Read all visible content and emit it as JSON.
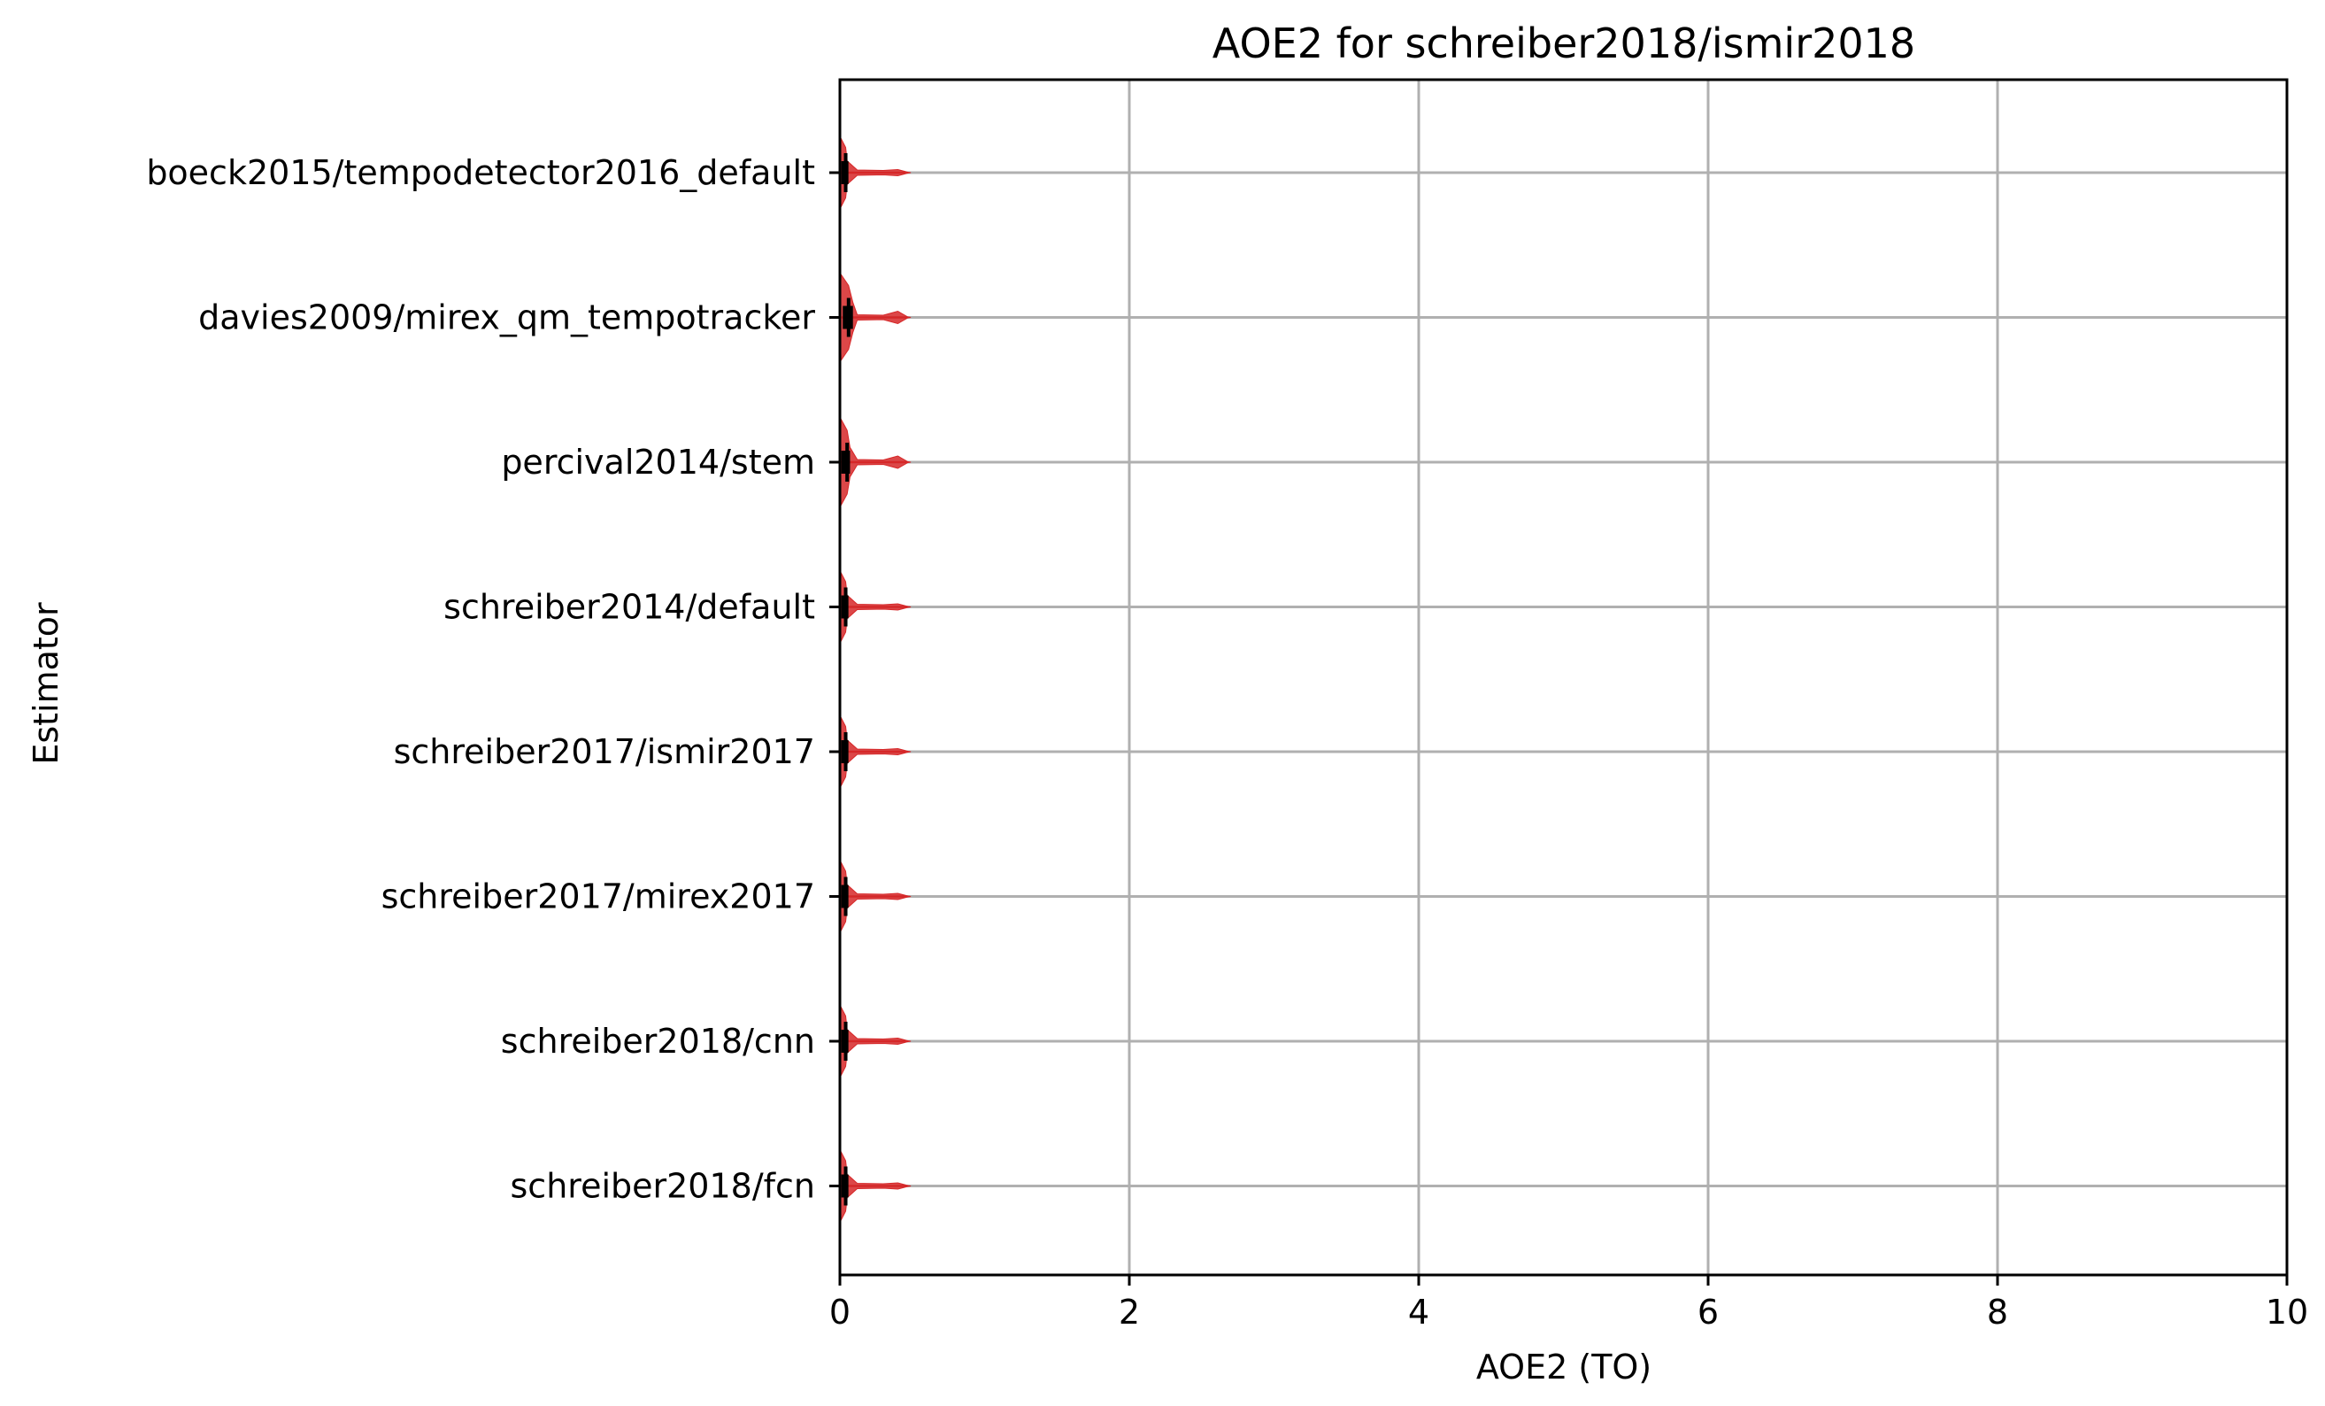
{
  "chart_data": {
    "type": "violin",
    "orientation": "horizontal",
    "title": "AOE2 for schreiber2018/ismir2018",
    "xlabel": "AOE2 (TO)",
    "ylabel": "Estimator",
    "xlim": [
      0,
      10
    ],
    "xticks": [
      0,
      2,
      4,
      6,
      8,
      10
    ],
    "grid": true,
    "colors": {
      "violin": "#d62728",
      "median": "#000000",
      "grid": "#b0b0b0"
    },
    "series": [
      {
        "name": "boeck2015/tempodetector2016_default",
        "median": 0.04,
        "q1": 0.01,
        "q3": 0.05,
        "max": 0.47
      },
      {
        "name": "davies2009/mirex_qm_tempotracker",
        "median": 0.06,
        "q1": 0.02,
        "q3": 0.09,
        "max": 0.47
      },
      {
        "name": "percival2014/stem",
        "median": 0.05,
        "q1": 0.01,
        "q3": 0.07,
        "max": 0.47
      },
      {
        "name": "schreiber2014/default",
        "median": 0.04,
        "q1": 0.01,
        "q3": 0.05,
        "max": 0.47
      },
      {
        "name": "schreiber2017/ismir2017",
        "median": 0.04,
        "q1": 0.01,
        "q3": 0.05,
        "max": 0.47
      },
      {
        "name": "schreiber2017/mirex2017",
        "median": 0.04,
        "q1": 0.01,
        "q3": 0.05,
        "max": 0.47
      },
      {
        "name": "schreiber2018/cnn",
        "median": 0.04,
        "q1": 0.01,
        "q3": 0.05,
        "max": 0.47
      },
      {
        "name": "schreiber2018/fcn",
        "median": 0.04,
        "q1": 0.01,
        "q3": 0.05,
        "max": 0.47
      }
    ]
  }
}
